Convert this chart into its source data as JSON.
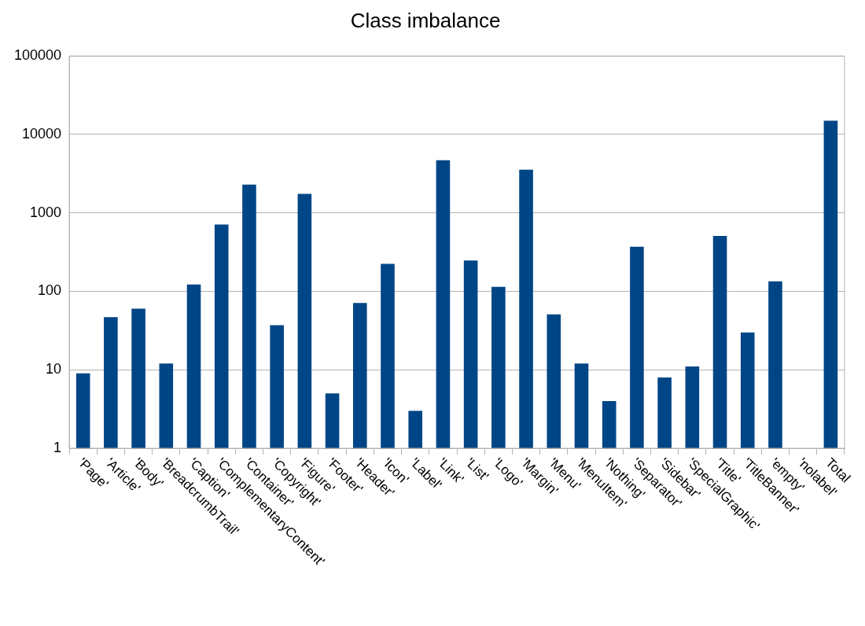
{
  "chart_data": {
    "type": "bar",
    "title": "Class imbalance",
    "categories": [
      "'Page'",
      "'Article'",
      "'Body'",
      "'BreadcrumbTrail'",
      "'Caption'",
      "'ComplementaryContent'",
      "'Container'",
      "'Copyright'",
      "'Figure'",
      "'Footer'",
      "'Header'",
      "'Icon'",
      "'Label'",
      "'Link'",
      "'List'",
      "'Logo'",
      "'Margin'",
      "'Menu'",
      "'MenuItem'",
      "'Nothing'",
      "'Separator'",
      "'Sidebar'",
      "'SpecialGraphic'",
      "'Title'",
      "'TitleBanner'",
      "'empty'",
      "'nolabel'",
      "Total"
    ],
    "values": [
      9,
      47,
      60,
      12,
      122,
      710,
      2300,
      37,
      1750,
      5,
      71,
      224,
      3,
      4700,
      247,
      114,
      3560,
      51,
      12,
      4,
      370,
      8,
      11,
      510,
      30,
      134,
      null,
      15000
    ],
    "color": "#004586",
    "log": true,
    "ylim": [
      1,
      100000
    ],
    "yticks": [
      1,
      10,
      100,
      1000,
      10000,
      100000
    ],
    "grid": "y",
    "legend": false
  }
}
